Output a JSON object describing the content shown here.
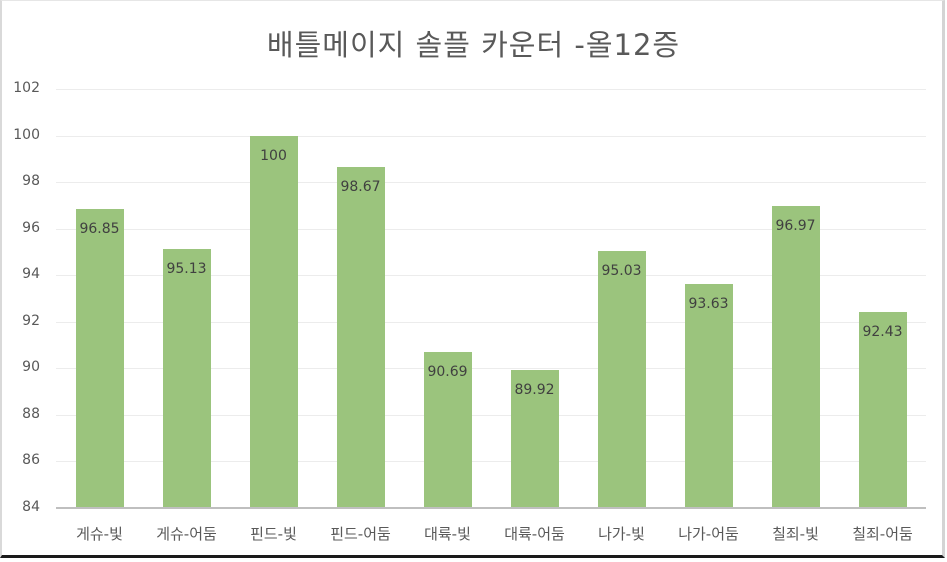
{
  "chart_data": {
    "type": "bar",
    "title": "배틀메이지 솔플 카운터 -올12증",
    "xlabel": "",
    "ylabel": "",
    "ylim": [
      84,
      102
    ],
    "yticks": [
      84,
      86,
      88,
      90,
      92,
      94,
      96,
      98,
      100,
      102
    ],
    "grid": true,
    "legend": null,
    "bar_color": "#9bc47d",
    "categories": [
      "게슈-빛",
      "게슈-어둠",
      "핀드-빛",
      "핀드-어둠",
      "대륙-빛",
      "대륙-어둠",
      "나가-빛",
      "나가-어둠",
      "칠죄-빛",
      "칠죄-어둠"
    ],
    "values": [
      96.85,
      95.13,
      100,
      98.67,
      90.69,
      89.92,
      95.03,
      93.63,
      96.97,
      92.43
    ],
    "data_labels": [
      "96.85",
      "95.13",
      "100",
      "98.67",
      "90.69",
      "89.92",
      "95.03",
      "93.63",
      "96.97",
      "92.43"
    ]
  }
}
